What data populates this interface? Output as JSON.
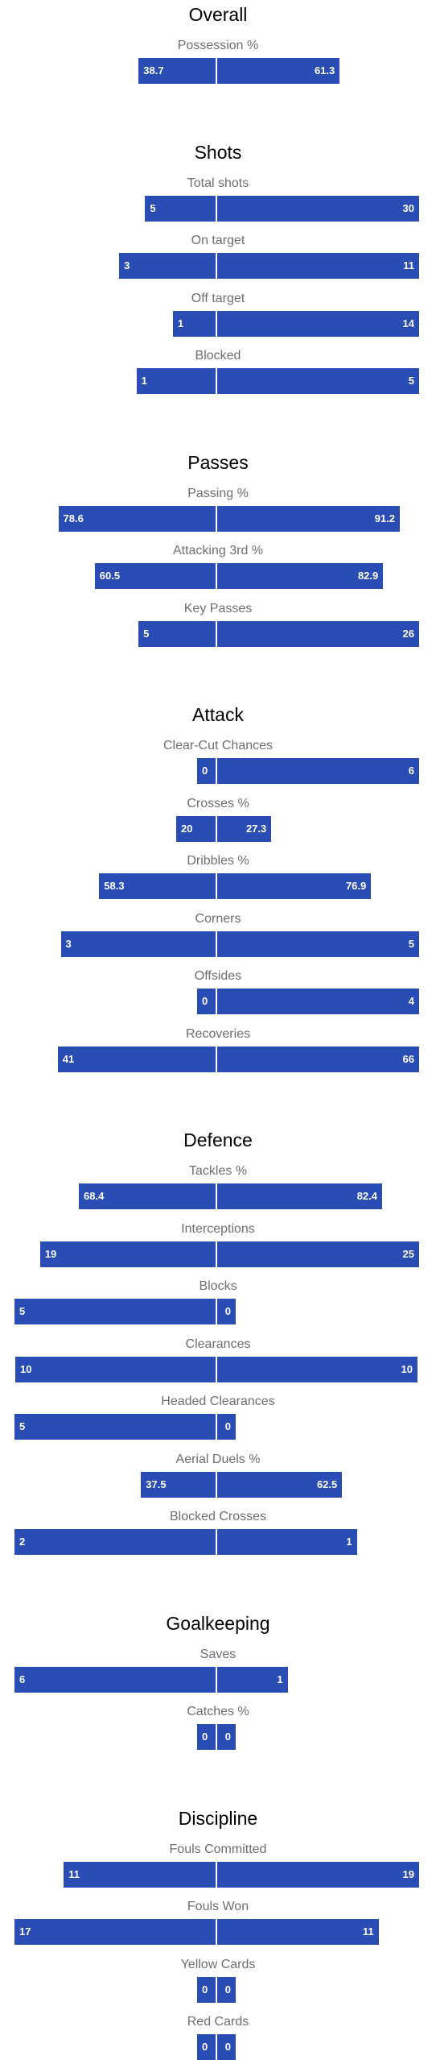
{
  "chart_data": {
    "type": "bar",
    "orientation": "horizontal-diverging",
    "colors": {
      "bar": "#2a4cb5",
      "divider": "#ffffff",
      "label": "#6e6e6e",
      "heading": "#000000",
      "value_text": "#ffffff"
    },
    "sections": [
      {
        "title": "Overall",
        "stats": [
          {
            "label": "Possession %",
            "home": "38.7",
            "away": "61.3",
            "scale": 100
          }
        ]
      },
      {
        "title": "Shots",
        "stats": [
          {
            "label": "Total shots",
            "home": "5",
            "away": "30"
          },
          {
            "label": "On target",
            "home": "3",
            "away": "11"
          },
          {
            "label": "Off target",
            "home": "1",
            "away": "14"
          },
          {
            "label": "Blocked",
            "home": "1",
            "away": "5"
          }
        ]
      },
      {
        "title": "Passes",
        "stats": [
          {
            "label": "Passing %",
            "home": "78.6",
            "away": "91.2",
            "scale": 100
          },
          {
            "label": "Attacking 3rd %",
            "home": "60.5",
            "away": "82.9",
            "scale": 100
          },
          {
            "label": "Key Passes",
            "home": "5",
            "away": "26"
          }
        ]
      },
      {
        "title": "Attack",
        "stats": [
          {
            "label": "Clear-Cut Chances",
            "home": "0",
            "away": "6"
          },
          {
            "label": "Crosses %",
            "home": "20",
            "away": "27.3",
            "scale": 100
          },
          {
            "label": "Dribbles %",
            "home": "58.3",
            "away": "76.9",
            "scale": 100
          },
          {
            "label": "Corners",
            "home": "3",
            "away": "5"
          },
          {
            "label": "Offsides",
            "home": "0",
            "away": "4"
          },
          {
            "label": "Recoveries",
            "home": "41",
            "away": "66"
          }
        ]
      },
      {
        "title": "Defence",
        "stats": [
          {
            "label": "Tackles %",
            "home": "68.4",
            "away": "82.4",
            "scale": 100
          },
          {
            "label": "Interceptions",
            "home": "19",
            "away": "25"
          },
          {
            "label": "Blocks",
            "home": "5",
            "away": "0"
          },
          {
            "label": "Clearances",
            "home": "10",
            "away": "10"
          },
          {
            "label": "Headed Clearances",
            "home": "5",
            "away": "0"
          },
          {
            "label": "Aerial Duels %",
            "home": "37.5",
            "away": "62.5",
            "scale": 100
          },
          {
            "label": "Blocked Crosses",
            "home": "2",
            "away": "1"
          }
        ]
      },
      {
        "title": "Goalkeeping",
        "stats": [
          {
            "label": "Saves",
            "home": "6",
            "away": "1"
          },
          {
            "label": "Catches %",
            "home": "0",
            "away": "0",
            "scale": 100
          }
        ]
      },
      {
        "title": "Discipline",
        "stats": [
          {
            "label": "Fouls Committed",
            "home": "11",
            "away": "19"
          },
          {
            "label": "Fouls Won",
            "home": "17",
            "away": "11"
          },
          {
            "label": "Yellow Cards",
            "home": "0",
            "away": "0"
          },
          {
            "label": "Red Cards",
            "home": "0",
            "away": "0"
          }
        ]
      }
    ]
  }
}
